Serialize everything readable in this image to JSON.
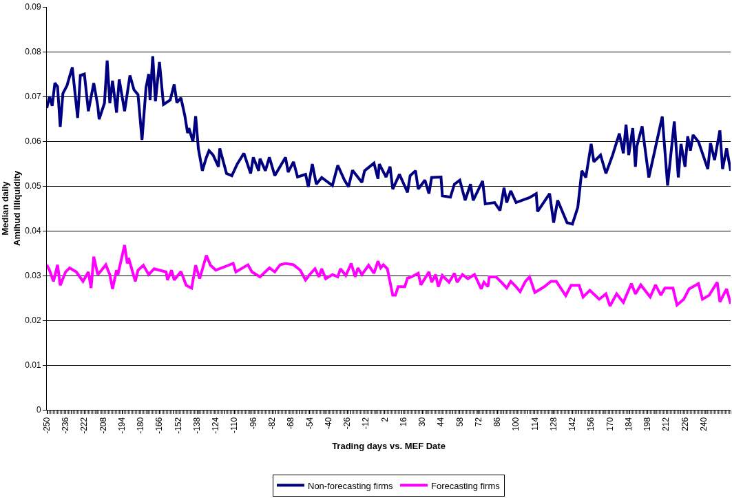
{
  "chart_data": {
    "type": "line",
    "xlabel": "Trading days vs. MEF Date",
    "ylabel": "Median daily\nAmihud Illiquidity",
    "xlim": [
      -250,
      260
    ],
    "xticks": [
      -250,
      -236,
      -222,
      -208,
      -194,
      -180,
      -166,
      -152,
      -138,
      -124,
      -110,
      -96,
      -82,
      -68,
      -54,
      -40,
      -26,
      -12,
      2,
      16,
      30,
      44,
      58,
      72,
      86,
      100,
      114,
      128,
      142,
      156,
      170,
      184,
      198,
      212,
      226,
      240
    ],
    "ylim": [
      0,
      0.09
    ],
    "yticks": [
      0,
      0.01,
      0.02,
      0.03,
      0.04,
      0.05,
      0.06,
      0.07,
      0.08,
      0.09
    ],
    "grid": "y",
    "legend": "bottom",
    "marker": "none",
    "line_style": "solid",
    "series": [
      {
        "name": "Non-forecasting firms",
        "color": "#000080",
        "x": [
          -250,
          -248,
          -246,
          -244,
          -242,
          -240,
          -238,
          -235,
          -231,
          -227,
          -225,
          -222,
          -219,
          -215,
          -212,
          -211,
          -207,
          -205,
          -203,
          -201,
          -198,
          -196,
          -192,
          -188,
          -185,
          -182,
          -179,
          -176,
          -174,
          -173,
          -171,
          -169,
          -166,
          -163,
          -158,
          -155,
          -153,
          -150,
          -147,
          -145,
          -144,
          -141,
          -139,
          -137,
          -134,
          -131,
          -129,
          -126,
          -122,
          -121,
          -116,
          -112,
          -108,
          -103,
          -98,
          -96,
          -92,
          -91,
          -87,
          -84,
          -80,
          -72,
          -70,
          -66,
          -63,
          -57,
          -55,
          -52,
          -49,
          -45,
          -37,
          -33,
          -28,
          -25,
          -22,
          -15,
          -13,
          -6,
          -3,
          -2,
          3,
          6,
          8,
          13,
          19,
          21,
          25,
          27,
          32,
          35,
          37,
          44,
          45,
          51,
          54,
          58,
          62,
          66,
          68,
          75,
          77,
          84,
          88,
          91,
          93,
          96,
          100,
          110,
          115,
          116,
          125,
          128,
          131,
          138,
          142,
          146,
          149,
          152,
          156,
          158,
          163,
          167,
          172,
          177,
          180,
          182,
          184,
          187,
          189,
          190,
          194,
          199,
          203,
          209,
          213,
          218,
          221,
          223,
          226,
          228,
          230,
          232,
          236,
          243,
          245,
          248,
          252,
          254,
          257,
          260
        ],
        "values": [
          0.0674,
          0.07,
          0.0679,
          0.073,
          0.0722,
          0.0632,
          0.0707,
          0.0724,
          0.0765,
          0.0652,
          0.0747,
          0.075,
          0.0667,
          0.073,
          0.0679,
          0.0649,
          0.0685,
          0.078,
          0.0685,
          0.0735,
          0.0664,
          0.0738,
          0.0667,
          0.0747,
          0.0715,
          0.0704,
          0.0603,
          0.072,
          0.075,
          0.0692,
          0.079,
          0.0689,
          0.0777,
          0.0682,
          0.0692,
          0.0727,
          0.0686,
          0.0697,
          0.0656,
          0.0618,
          0.0629,
          0.0599,
          0.0656,
          0.0584,
          0.0534,
          0.0564,
          0.0579,
          0.0569,
          0.0543,
          0.0584,
          0.0528,
          0.0523,
          0.0549,
          0.0573,
          0.0528,
          0.0564,
          0.0534,
          0.0561,
          0.0534,
          0.0564,
          0.0523,
          0.0564,
          0.0531,
          0.0554,
          0.052,
          0.0526,
          0.0498,
          0.0549,
          0.0504,
          0.0519,
          0.0501,
          0.0546,
          0.0513,
          0.0498,
          0.0535,
          0.0508,
          0.0534,
          0.0551,
          0.0516,
          0.0549,
          0.052,
          0.0543,
          0.0493,
          0.0526,
          0.0486,
          0.0523,
          0.0534,
          0.0493,
          0.0513,
          0.0483,
          0.0519,
          0.052,
          0.0478,
          0.0475,
          0.0504,
          0.0513,
          0.0468,
          0.0504,
          0.0468,
          0.0511,
          0.046,
          0.0463,
          0.0445,
          0.0496,
          0.0463,
          0.0489,
          0.0463,
          0.0474,
          0.0483,
          0.0443,
          0.0483,
          0.0418,
          0.0468,
          0.0418,
          0.0415,
          0.0452,
          0.0534,
          0.0519,
          0.0594,
          0.0554,
          0.0569,
          0.0528,
          0.0569,
          0.0617,
          0.0573,
          0.0637,
          0.0569,
          0.0629,
          0.0543,
          0.0588,
          0.0633,
          0.0519,
          0.0573,
          0.0655,
          0.0501,
          0.0644,
          0.0519,
          0.0594,
          0.0543,
          0.0611,
          0.0579,
          0.0614,
          0.0599,
          0.0538,
          0.0596,
          0.0558,
          0.0624,
          0.0538,
          0.0584,
          0.0534
        ]
      },
      {
        "name": "Forecasting firms",
        "color": "#ff00ff",
        "x": [
          -250,
          -248,
          -245,
          -242,
          -240,
          -236,
          -233,
          -228,
          -223,
          -219,
          -217,
          -215,
          -212,
          -210,
          -206,
          -203,
          -201,
          -198,
          -197,
          -192,
          -190,
          -189,
          -184,
          -182,
          -178,
          -174,
          -170,
          -166,
          -161,
          -160,
          -157,
          -155,
          -150,
          -146,
          -142,
          -139,
          -136,
          -131,
          -128,
          -124,
          -117,
          -111,
          -109,
          -100,
          -97,
          -91,
          -84,
          -80,
          -76,
          -72,
          -66,
          -61,
          -57,
          -54,
          -50,
          -47,
          -45,
          -42,
          -37,
          -33,
          -31,
          -27,
          -23,
          -20,
          -18,
          -15,
          -10,
          -6,
          -3,
          -1,
          1,
          4,
          8,
          10,
          12,
          17,
          19,
          22,
          27,
          29,
          35,
          37,
          40,
          42,
          45,
          50,
          54,
          56,
          60,
          64,
          69,
          74,
          76,
          79,
          80,
          85,
          89,
          93,
          96,
          100,
          103,
          107,
          110,
          114,
          121,
          126,
          130,
          137,
          141,
          147,
          150,
          155,
          162,
          167,
          170,
          175,
          180,
          186,
          189,
          193,
          200,
          204,
          208,
          211,
          217,
          220,
          225,
          229,
          236,
          239,
          244,
          250,
          252,
          257,
          260
        ],
        "values": [
          0.0324,
          0.0312,
          0.0287,
          0.0324,
          0.0278,
          0.0308,
          0.0317,
          0.0308,
          0.0287,
          0.0308,
          0.0272,
          0.0342,
          0.0302,
          0.0309,
          0.0324,
          0.0302,
          0.027,
          0.0312,
          0.0302,
          0.0368,
          0.0327,
          0.0339,
          0.0287,
          0.0312,
          0.0323,
          0.0302,
          0.0315,
          0.0312,
          0.0308,
          0.029,
          0.0312,
          0.029,
          0.0309,
          0.0278,
          0.0272,
          0.0323,
          0.0293,
          0.0345,
          0.0323,
          0.0312,
          0.032,
          0.0327,
          0.0308,
          0.0324,
          0.0308,
          0.0297,
          0.0317,
          0.0308,
          0.0324,
          0.0327,
          0.0324,
          0.0312,
          0.029,
          0.0302,
          0.0315,
          0.0297,
          0.0315,
          0.0293,
          0.0302,
          0.0297,
          0.0315,
          0.03,
          0.0327,
          0.0297,
          0.0317,
          0.0302,
          0.0323,
          0.0305,
          0.0332,
          0.0317,
          0.0324,
          0.0315,
          0.0256,
          0.0256,
          0.0275,
          0.0275,
          0.0294,
          0.0297,
          0.0305,
          0.0279,
          0.0308,
          0.0285,
          0.0302,
          0.0275,
          0.03,
          0.0285,
          0.0305,
          0.0285,
          0.0302,
          0.0293,
          0.0302,
          0.027,
          0.0285,
          0.0275,
          0.0297,
          0.0297,
          0.0285,
          0.0272,
          0.0287,
          0.0275,
          0.0264,
          0.0287,
          0.0297,
          0.0262,
          0.0275,
          0.0287,
          0.0287,
          0.0255,
          0.0278,
          0.0278,
          0.0252,
          0.0267,
          0.0247,
          0.0259,
          0.0232,
          0.0259,
          0.024,
          0.0282,
          0.0259,
          0.0279,
          0.0252,
          0.0279,
          0.0256,
          0.0272,
          0.0272,
          0.0234,
          0.0247,
          0.027,
          0.0282,
          0.0247,
          0.0256,
          0.0285,
          0.0241,
          0.027,
          0.0237
        ]
      }
    ]
  }
}
